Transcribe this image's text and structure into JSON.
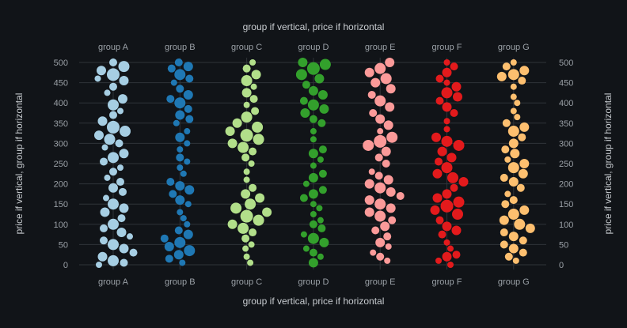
{
  "chart_data": {
    "type": "scatter",
    "subtype": "beeswarm",
    "title": "",
    "xlabel": "group if vertical, price if horizontal",
    "ylabel": "price if vertical, group if horizontal",
    "categories": [
      "group A",
      "group B",
      "group C",
      "group D",
      "group E",
      "group F",
      "group G"
    ],
    "ylim": [
      0,
      500
    ],
    "yticks": [
      0,
      50,
      100,
      150,
      200,
      250,
      300,
      350,
      400,
      450,
      500
    ],
    "grid": true,
    "legend": "none",
    "colors": [
      "#a6cee3",
      "#1f78b4",
      "#b2df8a",
      "#33a02c",
      "#fb9a99",
      "#e31a1c",
      "#fdbf6f"
    ],
    "series": [
      {
        "values": [
          [
            500,
            5
          ],
          [
            490,
            7
          ],
          [
            480,
            6
          ],
          [
            470,
            8
          ],
          [
            460,
            4
          ],
          [
            455,
            6
          ],
          [
            440,
            5
          ],
          [
            425,
            4
          ],
          [
            410,
            6
          ],
          [
            395,
            7
          ],
          [
            380,
            4
          ],
          [
            370,
            5
          ],
          [
            355,
            6
          ],
          [
            340,
            8
          ],
          [
            330,
            7
          ],
          [
            320,
            6
          ],
          [
            310,
            7
          ],
          [
            300,
            5
          ],
          [
            290,
            4
          ],
          [
            275,
            6
          ],
          [
            265,
            7
          ],
          [
            255,
            5
          ],
          [
            240,
            4
          ],
          [
            230,
            5
          ],
          [
            215,
            4
          ],
          [
            205,
            5
          ],
          [
            190,
            6
          ],
          [
            180,
            5
          ],
          [
            165,
            4
          ],
          [
            150,
            7
          ],
          [
            140,
            6
          ],
          [
            130,
            6
          ],
          [
            115,
            5
          ],
          [
            100,
            7
          ],
          [
            90,
            5
          ],
          [
            80,
            6
          ],
          [
            70,
            4
          ],
          [
            60,
            5
          ],
          [
            50,
            7
          ],
          [
            40,
            6
          ],
          [
            30,
            5
          ],
          [
            20,
            6
          ],
          [
            10,
            7
          ],
          [
            5,
            5
          ],
          [
            0,
            4
          ]
        ]
      },
      {
        "values": [
          [
            500,
            5
          ],
          [
            490,
            6
          ],
          [
            485,
            5
          ],
          [
            470,
            7
          ],
          [
            460,
            5
          ],
          [
            450,
            4
          ],
          [
            435,
            5
          ],
          [
            420,
            6
          ],
          [
            410,
            5
          ],
          [
            400,
            7
          ],
          [
            385,
            5
          ],
          [
            370,
            6
          ],
          [
            360,
            5
          ],
          [
            350,
            4
          ],
          [
            330,
            4
          ],
          [
            315,
            6
          ],
          [
            300,
            4
          ],
          [
            285,
            4
          ],
          [
            265,
            5
          ],
          [
            255,
            4
          ],
          [
            240,
            4
          ],
          [
            225,
            4
          ],
          [
            205,
            5
          ],
          [
            195,
            6
          ],
          [
            185,
            6
          ],
          [
            175,
            5
          ],
          [
            160,
            6
          ],
          [
            150,
            4
          ],
          [
            130,
            4
          ],
          [
            115,
            4
          ],
          [
            100,
            4
          ],
          [
            85,
            5
          ],
          [
            75,
            6
          ],
          [
            65,
            5
          ],
          [
            55,
            7
          ],
          [
            45,
            6
          ],
          [
            35,
            7
          ],
          [
            25,
            6
          ],
          [
            15,
            5
          ],
          [
            5,
            4
          ]
        ]
      },
      {
        "values": [
          [
            500,
            4
          ],
          [
            485,
            5
          ],
          [
            470,
            6
          ],
          [
            455,
            7
          ],
          [
            440,
            4
          ],
          [
            425,
            6
          ],
          [
            410,
            5
          ],
          [
            395,
            4
          ],
          [
            380,
            5
          ],
          [
            365,
            7
          ],
          [
            350,
            6
          ],
          [
            340,
            7
          ],
          [
            330,
            6
          ],
          [
            320,
            8
          ],
          [
            310,
            7
          ],
          [
            300,
            6
          ],
          [
            290,
            7
          ],
          [
            280,
            5
          ],
          [
            265,
            5
          ],
          [
            250,
            4
          ],
          [
            230,
            4
          ],
          [
            210,
            4
          ],
          [
            190,
            5
          ],
          [
            175,
            6
          ],
          [
            165,
            6
          ],
          [
            150,
            7
          ],
          [
            140,
            7
          ],
          [
            130,
            6
          ],
          [
            120,
            8
          ],
          [
            110,
            7
          ],
          [
            100,
            6
          ],
          [
            90,
            7
          ],
          [
            80,
            5
          ],
          [
            65,
            5
          ],
          [
            50,
            4
          ],
          [
            40,
            4
          ],
          [
            20,
            4
          ],
          [
            5,
            4
          ]
        ]
      },
      {
        "values": [
          [
            500,
            6
          ],
          [
            495,
            7
          ],
          [
            485,
            8
          ],
          [
            470,
            7
          ],
          [
            460,
            6
          ],
          [
            445,
            5
          ],
          [
            430,
            6
          ],
          [
            420,
            6
          ],
          [
            405,
            5
          ],
          [
            395,
            7
          ],
          [
            385,
            6
          ],
          [
            375,
            6
          ],
          [
            360,
            5
          ],
          [
            350,
            5
          ],
          [
            330,
            4
          ],
          [
            310,
            4
          ],
          [
            285,
            5
          ],
          [
            275,
            6
          ],
          [
            260,
            4
          ],
          [
            245,
            4
          ],
          [
            225,
            5
          ],
          [
            215,
            6
          ],
          [
            200,
            4
          ],
          [
            185,
            5
          ],
          [
            175,
            6
          ],
          [
            165,
            5
          ],
          [
            150,
            4
          ],
          [
            140,
            4
          ],
          [
            125,
            4
          ],
          [
            110,
            4
          ],
          [
            100,
            5
          ],
          [
            90,
            5
          ],
          [
            75,
            4
          ],
          [
            65,
            7
          ],
          [
            55,
            6
          ],
          [
            40,
            4
          ],
          [
            30,
            5
          ],
          [
            20,
            4
          ],
          [
            5,
            6
          ]
        ]
      },
      {
        "values": [
          [
            500,
            6
          ],
          [
            485,
            7
          ],
          [
            475,
            6
          ],
          [
            460,
            7
          ],
          [
            450,
            6
          ],
          [
            435,
            6
          ],
          [
            420,
            5
          ],
          [
            405,
            7
          ],
          [
            390,
            6
          ],
          [
            375,
            5
          ],
          [
            360,
            6
          ],
          [
            345,
            6
          ],
          [
            330,
            4
          ],
          [
            315,
            7
          ],
          [
            305,
            8
          ],
          [
            295,
            7
          ],
          [
            280,
            6
          ],
          [
            265,
            5
          ],
          [
            250,
            5
          ],
          [
            230,
            4
          ],
          [
            220,
            5
          ],
          [
            210,
            6
          ],
          [
            200,
            6
          ],
          [
            190,
            7
          ],
          [
            180,
            6
          ],
          [
            170,
            5
          ],
          [
            160,
            6
          ],
          [
            150,
            7
          ],
          [
            140,
            6
          ],
          [
            130,
            6
          ],
          [
            120,
            7
          ],
          [
            110,
            5
          ],
          [
            95,
            6
          ],
          [
            85,
            5
          ],
          [
            70,
            5
          ],
          [
            55,
            6
          ],
          [
            45,
            4
          ],
          [
            30,
            4
          ],
          [
            20,
            5
          ],
          [
            10,
            4
          ]
        ]
      },
      {
        "values": [
          [
            500,
            4
          ],
          [
            490,
            5
          ],
          [
            475,
            6
          ],
          [
            460,
            5
          ],
          [
            450,
            4
          ],
          [
            440,
            6
          ],
          [
            425,
            7
          ],
          [
            415,
            6
          ],
          [
            405,
            5
          ],
          [
            390,
            6
          ],
          [
            375,
            5
          ],
          [
            355,
            4
          ],
          [
            335,
            4
          ],
          [
            315,
            6
          ],
          [
            305,
            7
          ],
          [
            295,
            7
          ],
          [
            280,
            6
          ],
          [
            265,
            6
          ],
          [
            255,
            5
          ],
          [
            240,
            7
          ],
          [
            225,
            6
          ],
          [
            215,
            7
          ],
          [
            205,
            6
          ],
          [
            190,
            5
          ],
          [
            175,
            6
          ],
          [
            165,
            6
          ],
          [
            155,
            7
          ],
          [
            145,
            8
          ],
          [
            135,
            6
          ],
          [
            125,
            7
          ],
          [
            110,
            5
          ],
          [
            95,
            6
          ],
          [
            85,
            6
          ],
          [
            75,
            5
          ],
          [
            55,
            4
          ],
          [
            40,
            4
          ],
          [
            25,
            5
          ],
          [
            20,
            6
          ],
          [
            10,
            4
          ],
          [
            0,
            4
          ]
        ]
      },
      {
        "values": [
          [
            500,
            4
          ],
          [
            490,
            5
          ],
          [
            480,
            6
          ],
          [
            470,
            7
          ],
          [
            465,
            6
          ],
          [
            455,
            5
          ],
          [
            440,
            4
          ],
          [
            415,
            4
          ],
          [
            400,
            4
          ],
          [
            380,
            4
          ],
          [
            365,
            4
          ],
          [
            350,
            5
          ],
          [
            340,
            6
          ],
          [
            330,
            7
          ],
          [
            315,
            5
          ],
          [
            300,
            6
          ],
          [
            285,
            5
          ],
          [
            275,
            6
          ],
          [
            260,
            4
          ],
          [
            250,
            6
          ],
          [
            240,
            7
          ],
          [
            225,
            6
          ],
          [
            215,
            5
          ],
          [
            205,
            6
          ],
          [
            190,
            5
          ],
          [
            175,
            4
          ],
          [
            160,
            5
          ],
          [
            150,
            5
          ],
          [
            135,
            6
          ],
          [
            125,
            7
          ],
          [
            110,
            6
          ],
          [
            100,
            7
          ],
          [
            90,
            6
          ],
          [
            80,
            5
          ],
          [
            70,
            6
          ],
          [
            60,
            5
          ],
          [
            50,
            5
          ],
          [
            40,
            6
          ],
          [
            30,
            5
          ],
          [
            20,
            5
          ],
          [
            10,
            4
          ]
        ]
      }
    ]
  }
}
